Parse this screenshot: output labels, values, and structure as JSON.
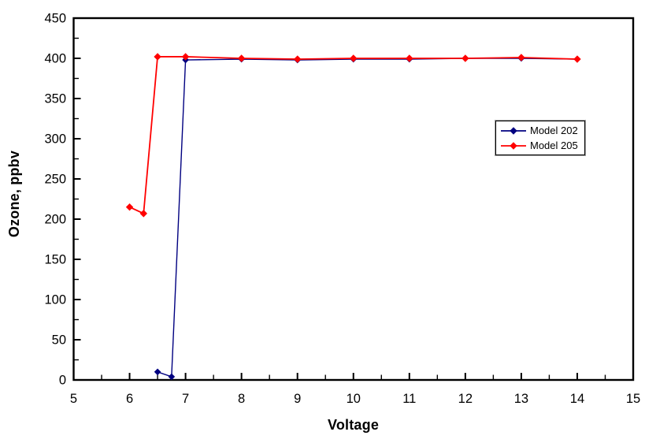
{
  "chart_data": {
    "type": "line",
    "title": "",
    "xlabel": "Voltage",
    "ylabel": "Ozone, ppbv",
    "xlim": [
      5,
      15
    ],
    "ylim": [
      0,
      450
    ],
    "x_major_ticks": [
      5,
      6,
      7,
      8,
      9,
      10,
      11,
      12,
      13,
      14,
      15
    ],
    "x_minor_step": 0.5,
    "y_major_ticks": [
      0,
      50,
      100,
      150,
      200,
      250,
      300,
      350,
      400,
      450
    ],
    "y_minor_step": 25,
    "grid": false,
    "legend_position": "inside-upper-right",
    "axis_color": "#000000",
    "background_color": "#ffffff",
    "series": [
      {
        "name": "Model 202",
        "color": "#000080",
        "marker": "diamond",
        "points": [
          [
            6.5,
            10
          ],
          [
            6.75,
            4
          ],
          [
            7,
            398
          ],
          [
            8,
            399
          ],
          [
            9,
            398
          ],
          [
            10,
            399
          ],
          [
            11,
            399
          ],
          [
            12,
            400
          ],
          [
            13,
            400
          ],
          [
            14,
            399
          ]
        ]
      },
      {
        "name": "Model 205",
        "color": "#ff0000",
        "marker": "diamond",
        "points": [
          [
            6,
            215
          ],
          [
            6.25,
            207
          ],
          [
            6.5,
            402
          ],
          [
            7,
            402
          ],
          [
            8,
            400
          ],
          [
            9,
            399
          ],
          [
            10,
            400
          ],
          [
            11,
            400
          ],
          [
            12,
            400
          ],
          [
            13,
            401
          ],
          [
            14,
            399
          ]
        ]
      }
    ]
  }
}
